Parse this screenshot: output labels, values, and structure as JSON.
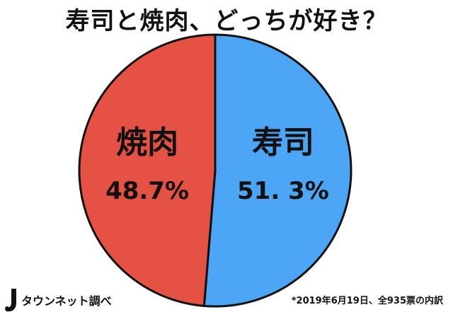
{
  "title": "寿司と焼肉、どっちが好き？",
  "chart_data": {
    "type": "pie",
    "title": "寿司と焼肉、どっちが好き？",
    "slices": [
      {
        "label": "寿司",
        "value": 51.3,
        "value_label": "51. 3%",
        "color": "#4da6f5"
      },
      {
        "label": "焼肉",
        "value": 48.7,
        "value_label": "48.7%",
        "color": "#e55243"
      }
    ],
    "start": "12 o'clock",
    "direction": "clockwise"
  },
  "logo": {
    "text": "タウンネット調べ"
  },
  "footnote": "*2019年6月19日、全935票の内訳"
}
